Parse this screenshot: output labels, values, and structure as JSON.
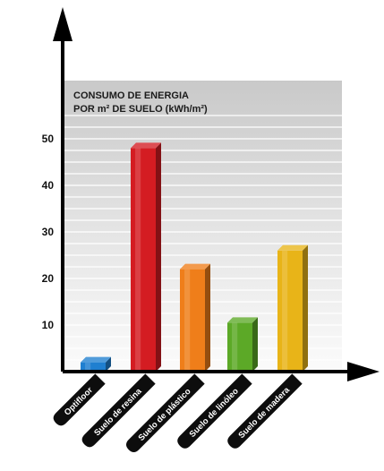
{
  "chart_data": {
    "type": "bar",
    "title": "CONSUMO DE ENERGIA",
    "subtitle": "POR m² DE SUELO (kWh/m²)",
    "categories": [
      "Optifloor",
      "Suelo de resina",
      "Suelo de plástico",
      "Suelo de linóleo",
      "Suelo de madera"
    ],
    "values": [
      2,
      48,
      22,
      10.5,
      26
    ],
    "colors": [
      "#1f7fd0",
      "#d41c22",
      "#ef7e1a",
      "#5ca927",
      "#e8b418"
    ],
    "y_ticks": [
      10,
      20,
      30,
      40,
      50
    ],
    "ylim": [
      0,
      60
    ],
    "grid": true,
    "legend": "none"
  }
}
